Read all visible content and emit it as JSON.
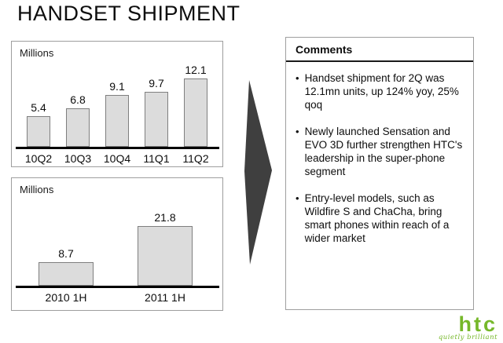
{
  "title": "HANDSET SHIPMENT",
  "chart_data": [
    {
      "type": "bar",
      "title": "",
      "unit_label": "Millions",
      "categories": [
        "10Q2",
        "10Q3",
        "10Q4",
        "11Q1",
        "11Q2"
      ],
      "values": [
        5.4,
        6.8,
        9.1,
        9.7,
        12.1
      ],
      "ylim": [
        0,
        13.5
      ],
      "grid": false,
      "legend": "none",
      "bar_fill": "#dcdcdc",
      "bar_border": "#7f7f7f",
      "axis_color": "#000000"
    },
    {
      "type": "bar",
      "title": "",
      "unit_label": "Millions",
      "categories": [
        "2010 1H",
        "2011 1H"
      ],
      "values": [
        8.7,
        21.8
      ],
      "ylim": [
        0,
        27
      ],
      "grid": false,
      "legend": "none",
      "bar_fill": "#dcdcdc",
      "bar_border": "#7f7f7f",
      "axis_color": "#000000"
    }
  ],
  "comments": {
    "header": "Comments",
    "bullets": [
      "Handset shipment for 2Q was 12.1mn units, up 124% yoy, 25% qoq",
      "Newly launched Sensation and EVO 3D further strengthen HTC's leadership in the super-phone segment",
      "Entry-level models, such as Wildfire S and ChaCha, bring smart phones within reach of a wider market"
    ]
  },
  "arrow": {
    "color": "#3f3f3f"
  },
  "logo": {
    "brand": "htc",
    "tagline": "quietly brilliant",
    "color": "#76B82A"
  }
}
